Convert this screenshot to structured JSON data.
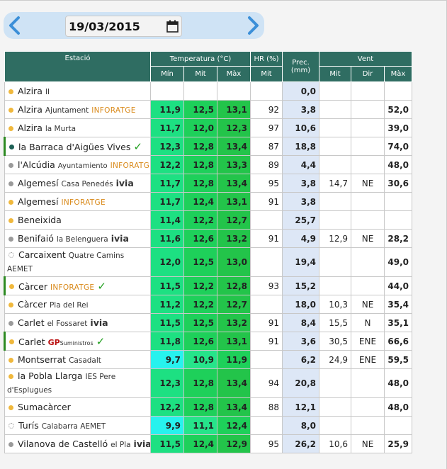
{
  "date_nav": {
    "prev_icon": "chevron-left-icon",
    "next_icon": "chevron-right-icon",
    "date_value": "19/03/2015",
    "calendar_icon": "calendar-icon"
  },
  "table": {
    "headers": {
      "estacio": "Estació",
      "temperatura": "Temperatura (°C)",
      "hr": "HR (%)",
      "prec": "Prec. (mm)",
      "vent": "Vent",
      "min": "Mín",
      "mit": "Mit",
      "max": "Màx",
      "hr_mit": "Mit",
      "vent_mit": "Mit",
      "dir": "Dir",
      "vent_max": "Màx"
    },
    "rows": [
      {
        "name": "Alzira",
        "sub": "II",
        "sub_style": "sm",
        "tmin": "",
        "tmit": "",
        "tmax": "",
        "hr": "",
        "prec": "0,0",
        "vmit": "",
        "dir": "",
        "vmax": ""
      },
      {
        "name": "Alzira",
        "sub": "Ajuntament",
        "logo": "INFORATGE",
        "tmin": "11,9",
        "tmit": "12,5",
        "tmax": "13,1",
        "hr": "92",
        "prec": "3,8",
        "vmit": "",
        "dir": "",
        "vmax": "52,0"
      },
      {
        "name": "Alzira",
        "sub": "la Murta",
        "tmin": "11,7",
        "tmit": "12,0",
        "tmax": "12,3",
        "hr": "97",
        "prec": "10,6",
        "vmit": "",
        "dir": "",
        "vmax": "39,0"
      },
      {
        "name": "la Barraca d'Aigües Vives",
        "check": "✓",
        "tmin": "12,3",
        "tmit": "12,8",
        "tmax": "13,4",
        "hr": "87",
        "prec": "18,8",
        "vmit": "",
        "dir": "",
        "vmax": "74,0"
      },
      {
        "name": "l'Alcúdia",
        "sub": "Ayuntamiento",
        "logo": "INFORATGE",
        "tmin": "12,2",
        "tmit": "12,8",
        "tmax": "13,3",
        "hr": "89",
        "prec": "4,4",
        "vmit": "",
        "dir": "",
        "vmax": "48,0"
      },
      {
        "name": "Algemesí",
        "sub": "Casa Penedés",
        "ivia": "ivia",
        "tmin": "11,7",
        "tmit": "12,8",
        "tmax": "13,4",
        "hr": "95",
        "prec": "3,8",
        "vmit": "14,7",
        "dir": "NE",
        "vmax": "30,6"
      },
      {
        "name": "Algemesí",
        "logo": "INFORATGE",
        "tmin": "11,7",
        "tmit": "12,4",
        "tmax": "13,1",
        "hr": "91",
        "prec": "3,8",
        "vmit": "",
        "dir": "",
        "vmax": ""
      },
      {
        "name": "Beneixida",
        "tmin": "11,4",
        "tmit": "12,2",
        "tmax": "12,7",
        "hr": "",
        "prec": "25,7",
        "vmit": "",
        "dir": "",
        "vmax": ""
      },
      {
        "name": "Benifaió",
        "sub": "la Belenguera",
        "ivia": "ivia",
        "tmin": "11,6",
        "tmit": "12,6",
        "tmax": "13,2",
        "hr": "91",
        "prec": "4,9",
        "vmit": "12,9",
        "dir": "NE",
        "vmax": "28,2"
      },
      {
        "name": "Carcaixent",
        "sub": "Quatre Camins AEMET",
        "tmin": "12,0",
        "tmit": "12,5",
        "tmax": "13,0",
        "hr": "",
        "prec": "19,4",
        "vmit": "",
        "dir": "",
        "vmax": "49,0"
      },
      {
        "name": "Càrcer",
        "logo": "INFORATGE",
        "check": "✓",
        "tmin": "11,5",
        "tmit": "12,2",
        "tmax": "12,8",
        "hr": "93",
        "prec": "15,2",
        "vmit": "",
        "dir": "",
        "vmax": "44,0"
      },
      {
        "name": "Càrcer",
        "sub": "Pla del Rei",
        "tmin": "11,2",
        "tmit": "12,2",
        "tmax": "12,7",
        "hr": "",
        "prec": "18,0",
        "vmit": "10,3",
        "dir": "NE",
        "vmax": "35,4"
      },
      {
        "name": "Carlet",
        "sub": "el Fossaret",
        "ivia": "ivia",
        "tmin": "11,5",
        "tmit": "12,5",
        "tmax": "13,2",
        "hr": "91",
        "prec": "8,4",
        "vmit": "15,5",
        "dir": "N",
        "vmax": "35,1"
      },
      {
        "name": "Carlet",
        "gp": "GP",
        "gps": "Suministros",
        "check": "✓",
        "tmin": "11,8",
        "tmit": "12,6",
        "tmax": "13,1",
        "hr": "91",
        "prec": "3,6",
        "vmit": "30,5",
        "dir": "ENE",
        "vmax": "66,6"
      },
      {
        "name": "Montserrat",
        "sub": "Casadalt",
        "tmin": "9,7",
        "tmit": "10,9",
        "tmax": "11,9",
        "hr": "",
        "prec": "6,2",
        "vmit": "24,9",
        "dir": "ENE",
        "vmax": "59,5"
      },
      {
        "name": "la Pobla Llarga",
        "sub": "IES Pere d'Esplugues",
        "tmin": "12,3",
        "tmit": "12,8",
        "tmax": "13,4",
        "hr": "94",
        "prec": "20,8",
        "vmit": "",
        "dir": "",
        "vmax": "48,0"
      },
      {
        "name": "Sumacàrcer",
        "tmin": "12,2",
        "tmit": "12,8",
        "tmax": "13,4",
        "hr": "88",
        "prec": "12,1",
        "vmit": "",
        "dir": "",
        "vmax": "48,0"
      },
      {
        "name": "Turís",
        "sub": "Calabarra AEMET",
        "tmin": "9,9",
        "tmit": "11,1",
        "tmax": "12,4",
        "hr": "",
        "prec": "8,0",
        "vmit": "",
        "dir": "",
        "vmax": ""
      },
      {
        "name": "Vilanova de Castelló",
        "sub": "el Pla",
        "ivia": "ivia",
        "tmin": "11,5",
        "tmit": "12,4",
        "tmax": "12,9",
        "hr": "95",
        "prec": "26,2",
        "vmit": "10,6",
        "dir": "NE",
        "vmax": "25,9"
      }
    ]
  },
  "colors": {
    "header_bg": "#2f6d62",
    "prec_bg": "#dde7f6",
    "green_min": "#1de082",
    "green_mit": "#1ed05a",
    "green_max": "#23c44a",
    "cyan_cold": "#27f2ee",
    "datebar_bg": "#cfe3f5"
  }
}
